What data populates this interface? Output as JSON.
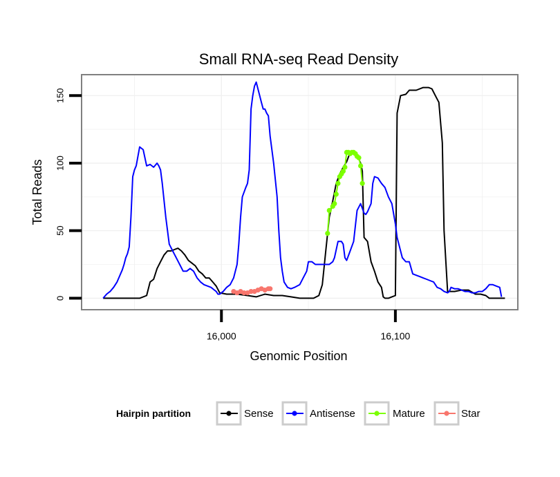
{
  "chart_data": {
    "type": "line",
    "title": "Small RNA-seq Read Density",
    "xlabel": "Genomic Position",
    "ylabel": "Total Reads",
    "xlim": [
      15920,
      16170
    ],
    "ylim": [
      -8,
      165
    ],
    "x_ticks": [
      16000,
      16100
    ],
    "x_tick_labels": [
      "16,000",
      "16,100"
    ],
    "y_ticks": [
      0,
      50,
      100,
      150
    ],
    "y_tick_labels": [
      "0",
      "50",
      "100",
      "150"
    ],
    "grid": true,
    "legend": {
      "title": "Hairpin partition",
      "position": "bottom",
      "entries": [
        "Sense",
        "Antisense",
        "Mature",
        "Star"
      ]
    },
    "series": [
      {
        "name": "Sense",
        "color": "#000000",
        "style": "line",
        "x": [
          15932,
          15953,
          15957,
          15959,
          15961,
          15963,
          15965,
          15967,
          15969,
          15971,
          15973,
          15975,
          15977,
          15979,
          15981,
          15983,
          15985,
          15987,
          15989,
          15991,
          15993,
          15995,
          15997,
          15999,
          16003,
          16009,
          16015,
          16020,
          16025,
          16030,
          16035,
          16040,
          16045,
          16050,
          16053,
          16056,
          16058,
          16060,
          16062,
          16064,
          16066,
          16068,
          16070,
          16072,
          16074,
          16076,
          16078,
          16080,
          16081,
          16082,
          16084,
          16086,
          16088,
          16090,
          16092,
          16093,
          16094,
          16096,
          16098,
          16100,
          16101,
          16103,
          16106,
          16108,
          16112,
          16116,
          16119,
          16121,
          16123,
          16125,
          16126,
          16127,
          16128,
          16130,
          16134,
          16138,
          16142,
          16146,
          16149,
          16152,
          16154,
          16157,
          16160,
          16163
        ],
        "values": [
          0,
          0,
          2,
          12,
          14,
          22,
          27,
          32,
          35,
          35,
          36,
          37,
          35,
          32,
          28,
          26,
          24,
          20,
          18,
          15,
          15,
          12,
          9,
          4,
          3,
          3,
          2,
          1,
          3,
          2,
          2,
          1,
          0,
          0,
          0,
          2,
          10,
          35,
          60,
          72,
          85,
          92,
          97,
          101,
          108,
          108,
          106,
          100,
          94,
          45,
          42,
          27,
          20,
          12,
          8,
          1,
          0,
          0,
          1,
          2,
          137,
          150,
          151,
          154,
          154,
          156,
          156,
          155,
          150,
          145,
          130,
          115,
          50,
          5,
          5,
          6,
          6,
          3,
          3,
          2,
          0,
          0,
          0,
          0
        ]
      },
      {
        "name": "Antisense",
        "color": "#0000ff",
        "style": "line",
        "x": [
          15932,
          15934,
          15936,
          15938,
          15940,
          15941,
          15943,
          15944,
          15945,
          15946,
          15947,
          15948,
          15949,
          15950,
          15951,
          15952,
          15953,
          15955,
          15957,
          15959,
          15961,
          15963,
          15964,
          15965,
          15966,
          15968,
          15970,
          15972,
          15974,
          15976,
          15978,
          15980,
          15982,
          15984,
          15986,
          15988,
          15990,
          15994,
          15997,
          15998,
          15999,
          16001,
          16003,
          16005,
          16007,
          16009,
          16010,
          16011,
          16012,
          16014,
          16015,
          16016,
          16017,
          16018,
          16019,
          16020,
          16022,
          16023,
          16024,
          16025,
          16026,
          16027,
          16028,
          16030,
          16032,
          16033,
          16034,
          16035,
          16036,
          16037,
          16038,
          16040,
          16042,
          16045,
          16047,
          16049,
          16050,
          16052,
          16054,
          16057,
          16058,
          16060,
          16062,
          16064,
          16065,
          16067,
          16069,
          16070,
          16071,
          16072,
          16074,
          16076,
          16078,
          16080,
          16082,
          16083,
          16084,
          16085,
          16086,
          16087,
          16088,
          16090,
          16091,
          16092,
          16094,
          16096,
          16098,
          16100,
          16101,
          16102,
          16103,
          16104,
          16106,
          16108,
          16110,
          16112,
          16114,
          16116,
          16118,
          16120,
          16122,
          16124,
          16126,
          16128,
          16130,
          16131,
          16132,
          16134,
          16136,
          16138,
          16140,
          16142,
          16144,
          16146,
          16148,
          16150,
          16152,
          16154,
          16156,
          16158,
          16160,
          16161
        ],
        "values": [
          0,
          3,
          5,
          8,
          12,
          15,
          21,
          25,
          30,
          33,
          38,
          60,
          90,
          95,
          98,
          105,
          112,
          110,
          98,
          99,
          97,
          100,
          98,
          95,
          85,
          60,
          40,
          35,
          30,
          25,
          20,
          20,
          22,
          20,
          15,
          12,
          10,
          8,
          5,
          3,
          3,
          5,
          8,
          10,
          15,
          25,
          40,
          60,
          75,
          82,
          85,
          95,
          140,
          150,
          157,
          160,
          150,
          145,
          140,
          140,
          137,
          135,
          120,
          100,
          75,
          50,
          30,
          20,
          12,
          10,
          8,
          7,
          8,
          10,
          15,
          20,
          27,
          27,
          25,
          25,
          25,
          25,
          25,
          27,
          30,
          42,
          42,
          40,
          30,
          28,
          35,
          42,
          65,
          70,
          63,
          62,
          64,
          67,
          70,
          85,
          90,
          89,
          87,
          85,
          82,
          75,
          70,
          55,
          45,
          40,
          35,
          30,
          27,
          27,
          18,
          17,
          16,
          15,
          14,
          13,
          12,
          8,
          7,
          5,
          4,
          5,
          8,
          7,
          7,
          6,
          5,
          5,
          4,
          4,
          5,
          5,
          7,
          10,
          10,
          9,
          8,
          1
        ]
      },
      {
        "name": "Mature",
        "color": "#7cff00",
        "style": "points",
        "x": [
          16061,
          16062,
          16064,
          16065,
          16066,
          16067,
          16068,
          16069,
          16070,
          16071,
          16072,
          16073,
          16074,
          16075,
          16076,
          16077,
          16078,
          16079,
          16080,
          16081
        ],
        "values": [
          48,
          65,
          68,
          70,
          77,
          85,
          90,
          92,
          94,
          97,
          108,
          108,
          107,
          108,
          108,
          107,
          105,
          104,
          98,
          85
        ]
      },
      {
        "name": "Star",
        "color": "#f8766d",
        "style": "points",
        "x": [
          16007,
          16009,
          16011,
          16013,
          16015,
          16017,
          16019,
          16021,
          16023,
          16025,
          16027,
          16028
        ],
        "values": [
          5,
          4,
          5,
          4,
          4,
          5,
          5,
          6,
          7,
          6,
          7,
          7
        ]
      }
    ]
  }
}
